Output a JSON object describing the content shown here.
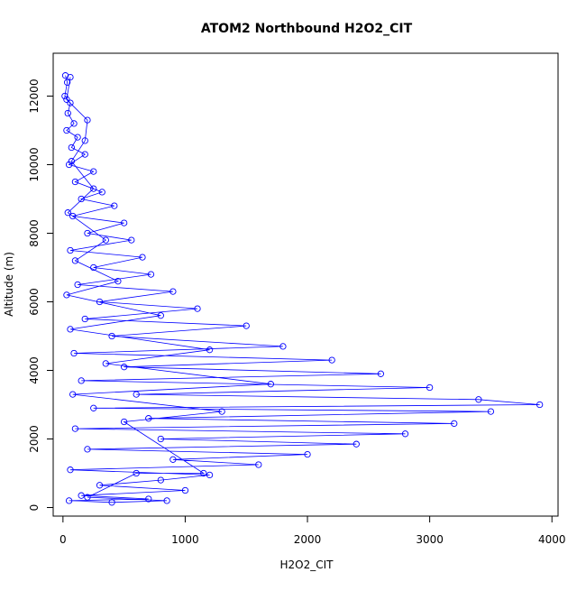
{
  "chart_data": {
    "type": "line",
    "title": "ATOM2 Northbound H2O2_CIT",
    "xlabel": "H2O2_CIT",
    "ylabel": "Altitude (m)",
    "xlim": [
      -80,
      4050
    ],
    "ylim": [
      -250,
      13250
    ],
    "x_ticks": [
      0,
      1000,
      2000,
      3000,
      4000
    ],
    "y_ticks": [
      0,
      2000,
      4000,
      6000,
      8000,
      10000,
      12000
    ],
    "grid": false,
    "legend": "none",
    "colors": {
      "series": "#0000ff",
      "axis": "#000000"
    },
    "series": [
      {
        "marker": "open-circle",
        "points": [
          [
            20,
            12600
          ],
          [
            35,
            12400
          ],
          [
            15,
            12000
          ],
          [
            60,
            11800
          ],
          [
            40,
            11500
          ],
          [
            90,
            11200
          ],
          [
            30,
            11000
          ],
          [
            120,
            10800
          ],
          [
            70,
            10500
          ],
          [
            180,
            10300
          ],
          [
            50,
            10000
          ],
          [
            250,
            9800
          ],
          [
            100,
            9500
          ],
          [
            320,
            9200
          ],
          [
            150,
            9000
          ],
          [
            420,
            8800
          ],
          [
            80,
            8500
          ],
          [
            500,
            8300
          ],
          [
            200,
            8000
          ],
          [
            560,
            7800
          ],
          [
            60,
            7500
          ],
          [
            650,
            7300
          ],
          [
            250,
            7000
          ],
          [
            720,
            6800
          ],
          [
            120,
            6500
          ],
          [
            900,
            6300
          ],
          [
            300,
            6000
          ],
          [
            1100,
            5800
          ],
          [
            180,
            5500
          ],
          [
            1500,
            5300
          ],
          [
            400,
            5000
          ],
          [
            1800,
            4700
          ],
          [
            90,
            4500
          ],
          [
            2200,
            4300
          ],
          [
            500,
            4100
          ],
          [
            2600,
            3900
          ],
          [
            150,
            3700
          ],
          [
            3000,
            3500
          ],
          [
            600,
            3300
          ],
          [
            3400,
            3150
          ],
          [
            3900,
            3000
          ],
          [
            250,
            2900
          ],
          [
            3500,
            2800
          ],
          [
            700,
            2600
          ],
          [
            3200,
            2450
          ],
          [
            100,
            2300
          ],
          [
            2800,
            2150
          ],
          [
            800,
            2000
          ],
          [
            2400,
            1850
          ],
          [
            200,
            1700
          ],
          [
            2000,
            1550
          ],
          [
            900,
            1400
          ],
          [
            1600,
            1250
          ],
          [
            60,
            1100
          ],
          [
            1200,
            950
          ],
          [
            800,
            800
          ],
          [
            300,
            650
          ],
          [
            1000,
            500
          ],
          [
            150,
            350
          ],
          [
            700,
            250
          ],
          [
            50,
            200
          ],
          [
            400,
            150
          ],
          [
            850,
            200
          ],
          [
            200,
            300
          ],
          [
            600,
            1000
          ],
          [
            1150,
            1000
          ],
          [
            500,
            2500
          ],
          [
            1300,
            2800
          ],
          [
            80,
            3300
          ],
          [
            1700,
            3600
          ],
          [
            350,
            4200
          ],
          [
            1200,
            4600
          ],
          [
            60,
            5200
          ],
          [
            800,
            5600
          ],
          [
            30,
            6200
          ],
          [
            450,
            6600
          ],
          [
            100,
            7200
          ],
          [
            350,
            7800
          ],
          [
            40,
            8600
          ],
          [
            250,
            9300
          ],
          [
            70,
            10100
          ],
          [
            180,
            10700
          ],
          [
            200,
            11300
          ],
          [
            30,
            11900
          ],
          [
            60,
            12550
          ]
        ]
      }
    ]
  }
}
